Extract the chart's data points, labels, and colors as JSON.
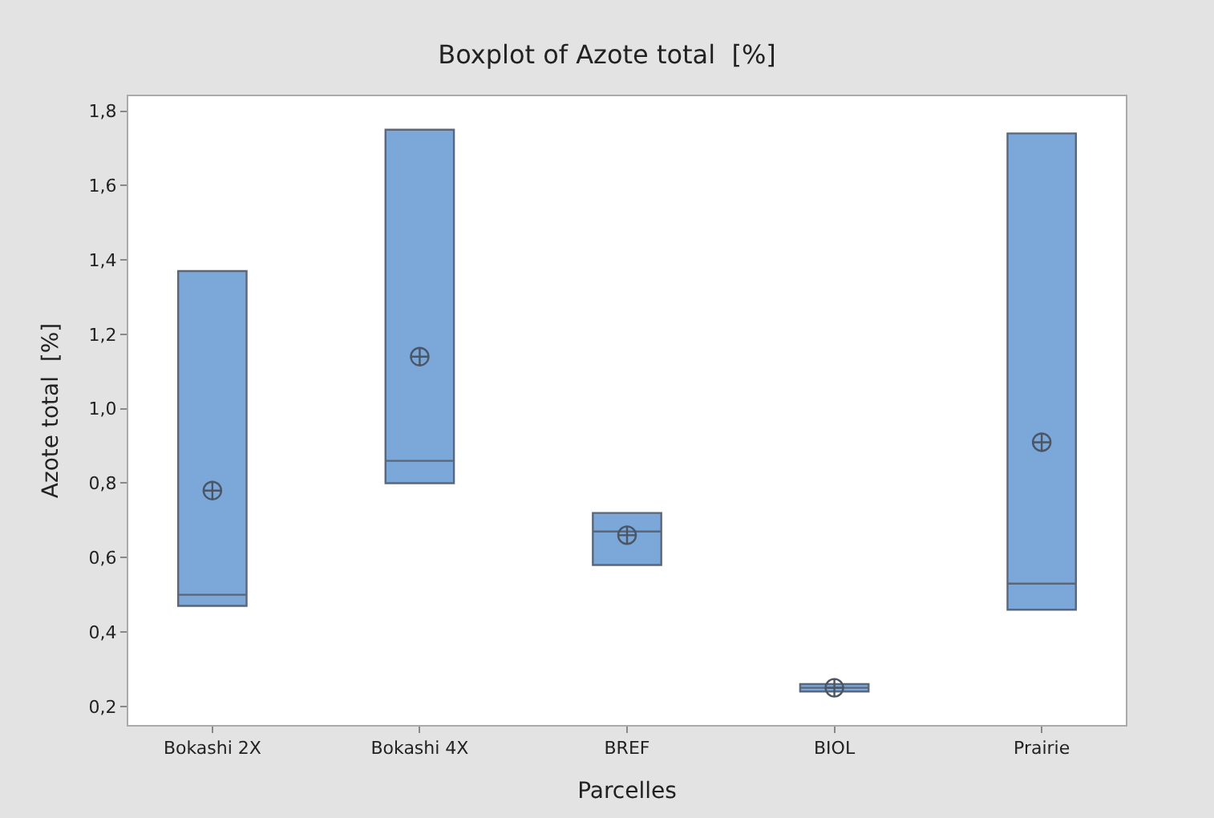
{
  "chart_data": {
    "type": "box",
    "title": "Boxplot of Azote total  [%]",
    "xlabel": "Parcelles",
    "ylabel": "Azote total  [%]",
    "categories": [
      "Bokashi 2X",
      "Bokashi 4X",
      "BREF",
      "BIOL",
      "Prairie"
    ],
    "boxes": [
      {
        "low": 0.47,
        "q1": 0.47,
        "median": 0.5,
        "q3": 1.37,
        "high": 1.37,
        "mean": 0.78
      },
      {
        "low": 0.8,
        "q1": 0.8,
        "median": 0.86,
        "q3": 1.75,
        "high": 1.75,
        "mean": 1.14
      },
      {
        "low": 0.58,
        "q1": 0.58,
        "median": 0.67,
        "q3": 0.72,
        "high": 0.72,
        "mean": 0.66
      },
      {
        "low": 0.24,
        "q1": 0.24,
        "median": 0.25,
        "q3": 0.26,
        "high": 0.26,
        "mean": 0.25
      },
      {
        "low": 0.46,
        "q1": 0.46,
        "median": 0.53,
        "q3": 1.74,
        "high": 1.74,
        "mean": 0.91
      }
    ],
    "color": "#7ba7d9",
    "ylim": [
      0.15,
      1.84
    ],
    "yticks": [
      {
        "value": 0.2,
        "label": "0,2"
      },
      {
        "value": 0.4,
        "label": "0,4"
      },
      {
        "value": 0.6,
        "label": "0,6"
      },
      {
        "value": 0.8,
        "label": "0,8"
      },
      {
        "value": 1.0,
        "label": "1,0"
      },
      {
        "value": 1.2,
        "label": "1,2"
      },
      {
        "value": 1.4,
        "label": "1,4"
      },
      {
        "value": 1.6,
        "label": "1,6"
      },
      {
        "value": 1.8,
        "label": "1,8"
      }
    ],
    "marker": "circle"
  }
}
